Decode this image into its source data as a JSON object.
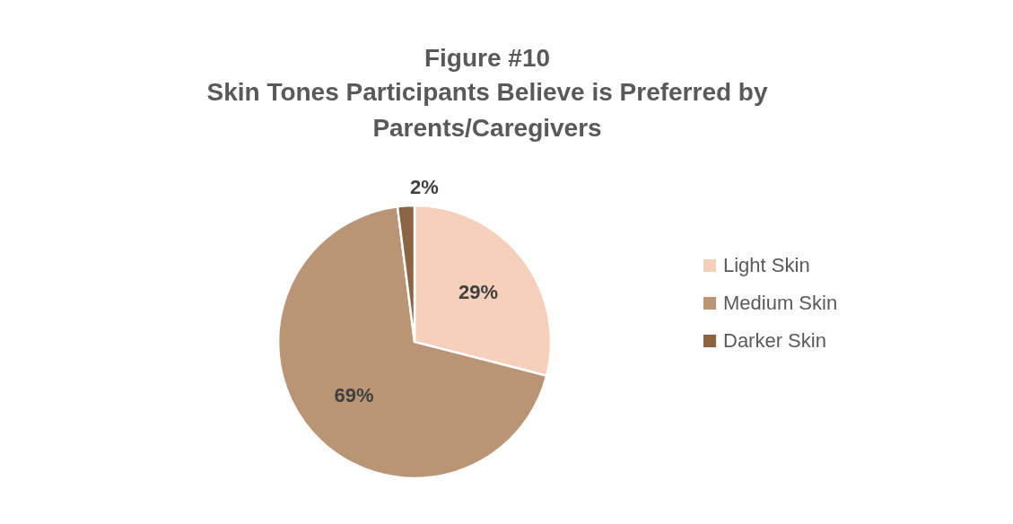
{
  "chart_data": {
    "type": "pie",
    "title": "Figure #10",
    "subtitle": "Skin Tones Participants  Believe is Preferred by Parents/Caregivers",
    "categories": [
      "Light Skin",
      "Medium Skin",
      "Darker Skin"
    ],
    "values": [
      29,
      69,
      2
    ],
    "value_labels": [
      "29%",
      "69%",
      "2%"
    ],
    "colors": [
      "#f6d0bb",
      "#b99576",
      "#8b6443"
    ],
    "legend": "right"
  }
}
